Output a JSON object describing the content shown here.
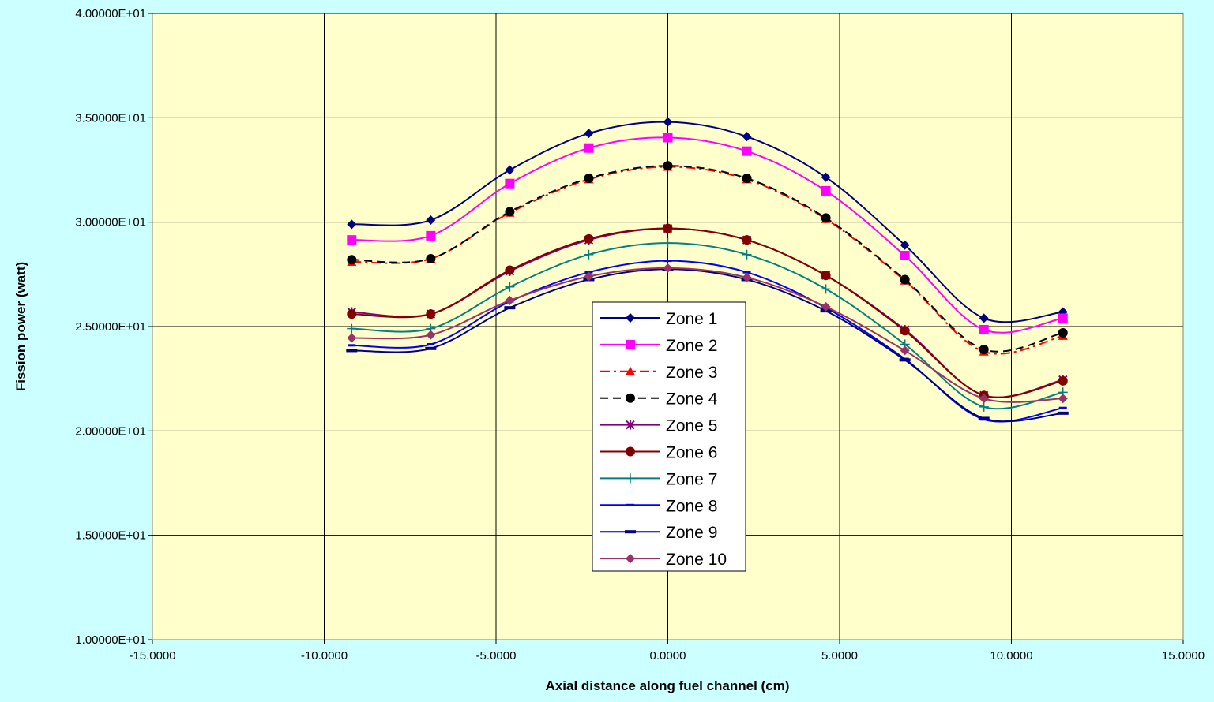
{
  "chart_data": {
    "type": "line",
    "title": "",
    "xlabel": "Axial distance along fuel channel (cm)",
    "ylabel": "Fission power (watt)",
    "xlim": [
      -15,
      15
    ],
    "ylim": [
      10,
      40
    ],
    "x_ticks": [
      -15,
      -10,
      -5,
      0,
      5,
      10,
      15
    ],
    "y_ticks": [
      10,
      15,
      20,
      25,
      30,
      35,
      40
    ],
    "x_tick_labels": [
      "-15.0000",
      "-10.0000",
      "-5.0000",
      "0.0000",
      "5.0000",
      "10.0000",
      "15.0000"
    ],
    "y_tick_labels": [
      "1.00000E+01",
      "1.50000E+01",
      "2.00000E+01",
      "2.50000E+01",
      "3.00000E+01",
      "3.50000E+01",
      "4.00000E+01"
    ],
    "grid": true,
    "legend_position": "center",
    "x": [
      -9.2,
      -6.9,
      -4.6,
      -2.3,
      0.0,
      2.3,
      4.6,
      6.9,
      9.2,
      11.5
    ],
    "series": [
      {
        "name": "Zone 1",
        "color": "#000080",
        "marker": "diamond",
        "dash": "solid",
        "values": [
          29.9,
          30.1,
          32.5,
          34.25,
          34.8,
          34.1,
          32.15,
          28.9,
          25.4,
          25.7
        ]
      },
      {
        "name": "Zone 2",
        "color": "#FF00FF",
        "marker": "square",
        "dash": "solid",
        "values": [
          29.15,
          29.35,
          31.85,
          33.55,
          34.05,
          33.4,
          31.5,
          28.4,
          24.85,
          25.4
        ]
      },
      {
        "name": "Zone 3",
        "color": "#FF0000",
        "marker": "triangle",
        "dash": "dashdot",
        "values": [
          28.1,
          28.25,
          30.45,
          32.05,
          32.65,
          32.05,
          30.15,
          27.2,
          23.8,
          24.55
        ]
      },
      {
        "name": "Zone 4",
        "color": "#000000",
        "marker": "circle",
        "dash": "dash",
        "values": [
          28.2,
          28.25,
          30.5,
          32.1,
          32.7,
          32.1,
          30.2,
          27.25,
          23.9,
          24.7
        ]
      },
      {
        "name": "Zone 5",
        "color": "#800080",
        "marker": "star",
        "dash": "solid",
        "values": [
          25.7,
          25.6,
          27.65,
          29.15,
          29.7,
          29.15,
          27.45,
          24.85,
          21.7,
          22.45
        ]
      },
      {
        "name": "Zone 6",
        "color": "#800000",
        "marker": "circle",
        "dash": "solid",
        "values": [
          25.6,
          25.6,
          27.7,
          29.2,
          29.7,
          29.15,
          27.45,
          24.8,
          21.7,
          22.4
        ]
      },
      {
        "name": "Zone 7",
        "color": "#008080",
        "marker": "plus",
        "dash": "solid",
        "values": [
          24.9,
          24.9,
          26.9,
          28.45,
          29.0,
          28.45,
          26.8,
          24.15,
          21.15,
          21.85
        ]
      },
      {
        "name": "Zone 8",
        "color": "#0000FF",
        "marker": "dash",
        "dash": "solid",
        "values": [
          24.1,
          24.15,
          26.2,
          27.6,
          28.15,
          27.6,
          25.9,
          23.45,
          20.55,
          21.1
        ]
      },
      {
        "name": "Zone 9",
        "color": "#000080",
        "marker": "bar",
        "dash": "solid",
        "values": [
          23.85,
          23.95,
          25.9,
          27.25,
          27.75,
          27.25,
          25.75,
          23.4,
          20.6,
          20.85
        ]
      },
      {
        "name": "Zone 10",
        "color": "#993366",
        "marker": "diamond",
        "dash": "solid",
        "values": [
          24.45,
          24.6,
          26.25,
          27.4,
          27.8,
          27.35,
          25.95,
          23.85,
          21.55,
          21.55
        ]
      }
    ]
  },
  "colors": {
    "page_background": "#CCFFFF",
    "plot_background": "#FFFFCC",
    "grid": "#000000"
  }
}
